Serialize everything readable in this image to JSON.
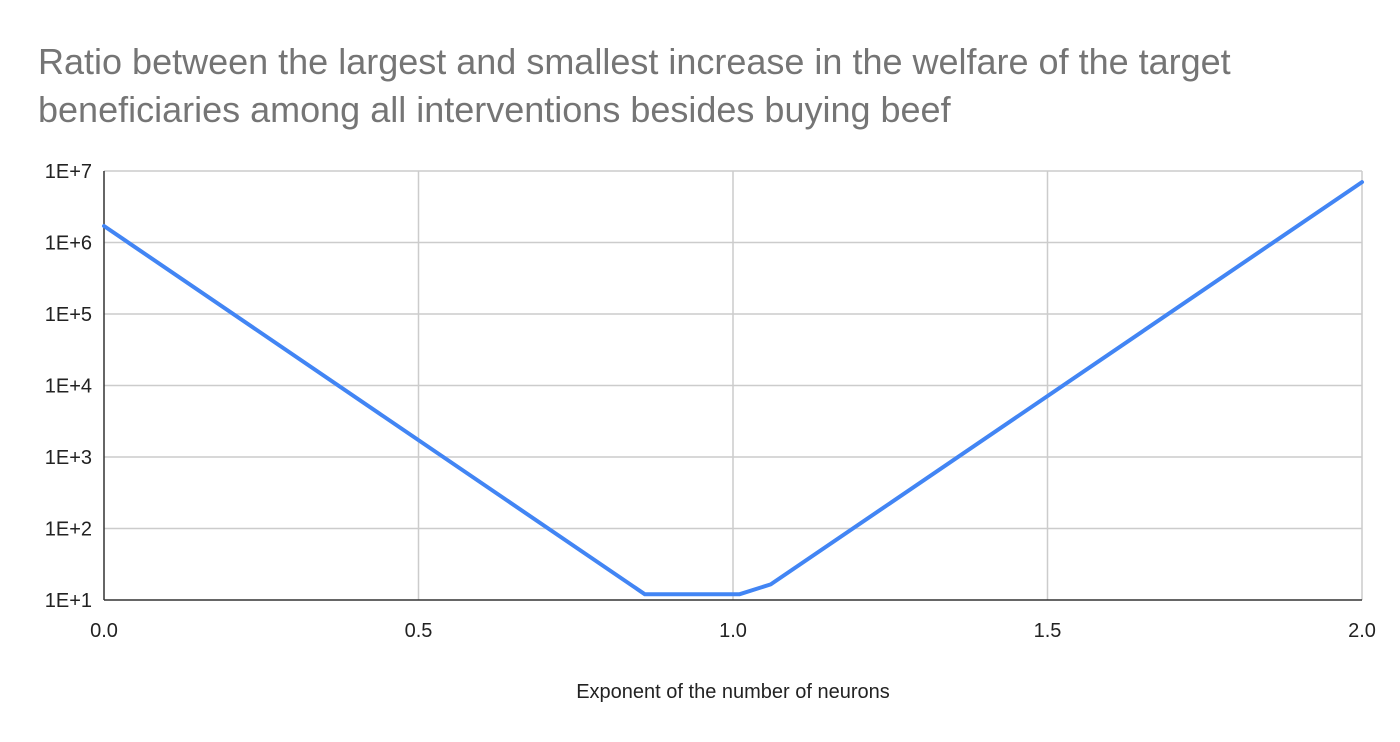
{
  "chart_data": {
    "type": "line",
    "title": "Ratio between the largest and smallest increase in the welfare of the target beneficiaries among all interventions besides buying beef",
    "xlabel": "Exponent of the number of neurons",
    "ylabel": "",
    "y_scale": "log",
    "xlim": [
      0,
      2
    ],
    "ylim": [
      10,
      10000000
    ],
    "x_ticks": [
      0,
      0.5,
      1,
      1.5,
      2
    ],
    "x_tick_labels": [
      "0.0",
      "0.5",
      "1.0",
      "1.5",
      "2.0"
    ],
    "y_ticks": [
      10,
      100,
      1000,
      10000,
      100000,
      1000000,
      10000000
    ],
    "y_tick_labels": [
      "1E+1",
      "1E+2",
      "1E+3",
      "1E+4",
      "1E+5",
      "1E+6",
      "1E+7"
    ],
    "grid": true,
    "legend": "none",
    "series": [
      {
        "color": "#4285f4",
        "x": [
          0,
          0.86,
          1.01,
          1.06,
          2.0
        ],
        "y": [
          1700000,
          12,
          12,
          16.5,
          7000000
        ]
      }
    ]
  }
}
